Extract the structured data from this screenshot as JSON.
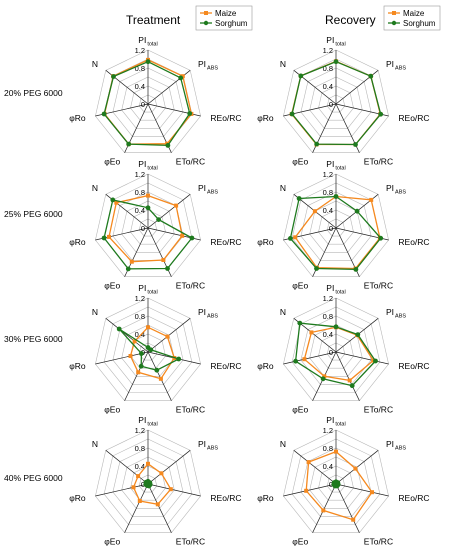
{
  "columns": [
    "Treatment",
    "Recovery"
  ],
  "rows": [
    "20% PEG 6000",
    "25% PEG 6000",
    "30% PEG 6000",
    "40% PEG 6000"
  ],
  "colors": {
    "maize": "#f5891f",
    "sorghum": "#1e7a1e",
    "grid": "#b8b8b8",
    "spoke": "#222222"
  },
  "chart_data": [
    {
      "type": "radar",
      "title": "Treatment",
      "row_label": "20% PEG 6000",
      "axes": [
        "PI total",
        "PI ABS",
        "REo/RC",
        "ETo/RC",
        "φEo",
        "φRo",
        "N"
      ],
      "radial_ticks": [
        "0.4",
        "0.8",
        "1.2"
      ],
      "rlim": [
        0,
        1.2
      ],
      "series": [
        {
          "name": "Maize",
          "values": [
            0.98,
            0.99,
            0.99,
            0.98,
            0.99,
            0.99,
            0.99
          ]
        },
        {
          "name": "Sorghum",
          "values": [
            0.94,
            0.93,
            0.95,
            1.02,
            0.99,
            1.0,
            0.98
          ]
        }
      ]
    },
    {
      "type": "radar",
      "title": "Recovery",
      "row_label": "20% PEG 6000",
      "axes": [
        "PI total",
        "PI ABS",
        "REo/RC",
        "ETo/RC",
        "φEo",
        "φRo",
        "N"
      ],
      "radial_ticks": [
        "0.4",
        "0.8",
        "1.2"
      ],
      "rlim": [
        0,
        1.2
      ],
      "series": [
        {
          "name": "Maize",
          "values": [
            0.95,
            0.99,
            1.01,
            1.0,
            1.0,
            1.01,
            1.0
          ]
        },
        {
          "name": "Sorghum",
          "values": [
            0.94,
            0.99,
            1.02,
            1.0,
            0.99,
            1.0,
            1.0
          ]
        }
      ]
    },
    {
      "type": "radar",
      "title": "Treatment",
      "row_label": "25% PEG 6000",
      "axes": [
        "PI total",
        "PI ABS",
        "REo/RC",
        "ETo/RC",
        "φEo",
        "φRo",
        "N"
      ],
      "radial_ticks": [
        "0.4",
        "0.8",
        "1.2"
      ],
      "rlim": [
        0,
        1.2
      ],
      "series": [
        {
          "name": "Maize",
          "values": [
            0.72,
            0.8,
            0.78,
            0.79,
            0.83,
            0.89,
            0.9
          ]
        },
        {
          "name": "Sorghum",
          "values": [
            0.45,
            0.3,
            1.0,
            1.0,
            1.01,
            1.0,
            1.0
          ]
        }
      ]
    },
    {
      "type": "radar",
      "title": "Recovery",
      "row_label": "25% PEG 6000",
      "axes": [
        "PI total",
        "PI ABS",
        "REo/RC",
        "ETo/RC",
        "φEo",
        "φRo",
        "N"
      ],
      "radial_ticks": [
        "0.4",
        "0.8",
        "1.2"
      ],
      "rlim": [
        0,
        1.2
      ],
      "series": [
        {
          "name": "Maize",
          "values": [
            0.7,
            1.0,
            1.0,
            1.0,
            0.98,
            0.93,
            0.6
          ]
        },
        {
          "name": "Sorghum",
          "values": [
            0.7,
            0.6,
            1.02,
            1.02,
            1.0,
            1.04,
            1.05
          ]
        }
      ]
    },
    {
      "type": "radar",
      "title": "Treatment",
      "row_label": "30% PEG 6000",
      "axes": [
        "PI total",
        "PI ABS",
        "REo/RC",
        "ETo/RC",
        "φEo",
        "φRo",
        "N"
      ],
      "radial_ticks": [
        "0.4",
        "0.8",
        "1.2"
      ],
      "rlim": [
        0,
        1.2
      ],
      "series": [
        {
          "name": "Maize",
          "values": [
            0.55,
            0.55,
            0.6,
            0.66,
            0.5,
            0.4,
            0.38
          ]
        },
        {
          "name": "Sorghum",
          "values": [
            0.1,
            0.08,
            0.7,
            0.45,
            0.35,
            0.15,
            0.82
          ]
        }
      ]
    },
    {
      "type": "radar",
      "title": "Recovery",
      "row_label": "30% PEG 6000",
      "axes": [
        "PI total",
        "PI ABS",
        "REo/RC",
        "ETo/RC",
        "φEo",
        "φRo",
        "N"
      ],
      "radial_ticks": [
        "0.4",
        "0.8",
        "1.2"
      ],
      "rlim": [
        0,
        1.2
      ],
      "series": [
        {
          "name": "Maize",
          "values": [
            0.55,
            0.6,
            0.85,
            0.7,
            0.6,
            0.72,
            0.7
          ]
        },
        {
          "name": "Sorghum",
          "values": [
            0.56,
            0.62,
            0.9,
            0.83,
            0.66,
            0.92,
            1.03
          ]
        }
      ]
    },
    {
      "type": "radar",
      "title": "Treatment",
      "row_label": "40% PEG 6000",
      "axes": [
        "PI total",
        "PI ABS",
        "REo/RC",
        "ETo/RC",
        "φEo",
        "φRo",
        "N"
      ],
      "radial_ticks": [
        "0.4",
        "0.8",
        "1.2"
      ],
      "rlim": [
        0,
        1.2
      ],
      "series": [
        {
          "name": "Maize",
          "values": [
            0.45,
            0.38,
            0.52,
            0.5,
            0.42,
            0.33,
            0.28
          ]
        },
        {
          "name": "Sorghum",
          "values": [
            0.06,
            0.05,
            0.05,
            0.05,
            0.04,
            0.05,
            0.06
          ]
        }
      ]
    },
    {
      "type": "radar",
      "title": "Recovery",
      "row_label": "40% PEG 6000",
      "axes": [
        "PI total",
        "PI ABS",
        "REo/RC",
        "ETo/RC",
        "φEo",
        "φRo",
        "N"
      ],
      "radial_ticks": [
        "0.4",
        "0.8",
        "1.2"
      ],
      "rlim": [
        0,
        1.2
      ],
      "series": [
        {
          "name": "Maize",
          "values": [
            0.72,
            0.55,
            0.82,
            0.88,
            0.65,
            0.68,
            0.78
          ]
        },
        {
          "name": "Sorghum",
          "values": [
            0.05,
            0.05,
            0.05,
            0.05,
            0.05,
            0.05,
            0.05
          ]
        }
      ]
    }
  ]
}
